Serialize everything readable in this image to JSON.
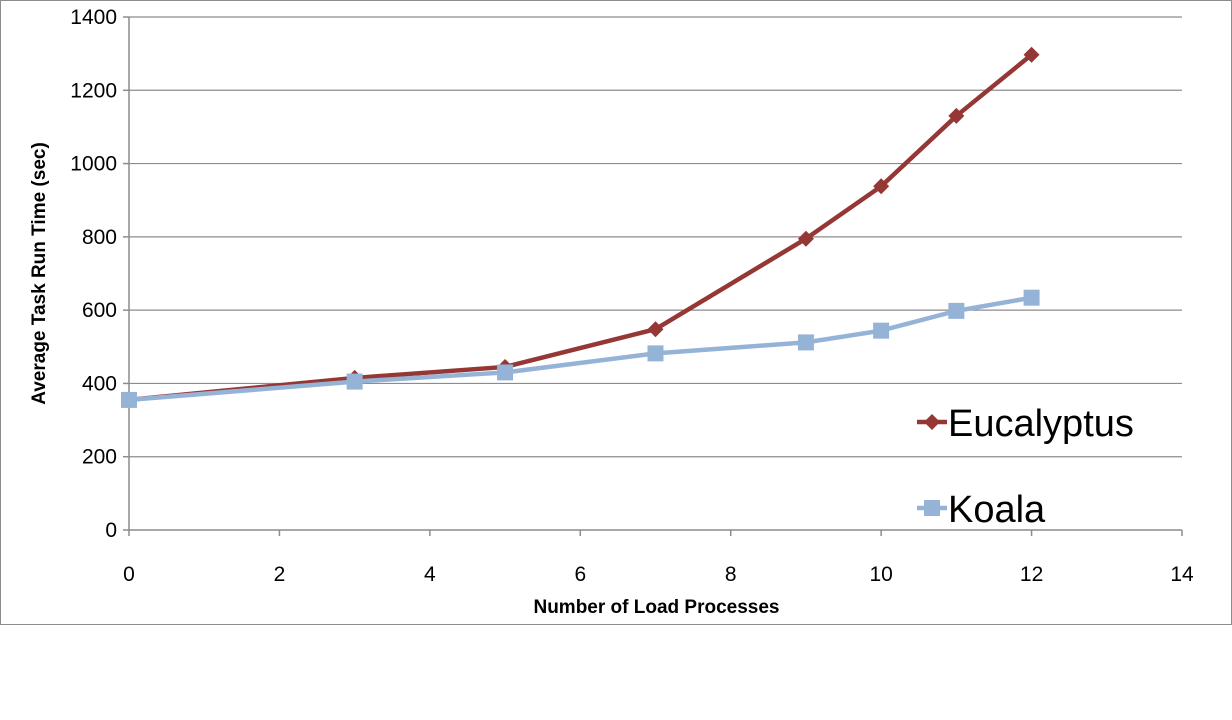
{
  "chart_data": {
    "type": "line",
    "title": "",
    "xlabel": "Number of Load Processes",
    "ylabel": "Average Task Run Time (sec)",
    "xlim": [
      0,
      14
    ],
    "ylim": [
      0,
      1400
    ],
    "xticks": [
      0,
      2,
      4,
      6,
      8,
      10,
      12,
      14
    ],
    "yticks": [
      0,
      200,
      400,
      600,
      800,
      1000,
      1200,
      1400
    ],
    "grid": "horizontal",
    "legend_position": "right",
    "series": [
      {
        "name": "Eucalyptus",
        "color": "#953735",
        "marker": "diamond",
        "x": [
          0,
          3,
          5,
          7,
          9,
          10,
          11,
          12
        ],
        "y": [
          355,
          415,
          445,
          548,
          795,
          938,
          1130,
          1297
        ]
      },
      {
        "name": "Koala",
        "color": "#95b3d7",
        "marker": "square",
        "x": [
          0,
          3,
          5,
          7,
          9,
          10,
          11,
          12
        ],
        "y": [
          355,
          405,
          430,
          482,
          512,
          544,
          598,
          634
        ]
      }
    ]
  }
}
